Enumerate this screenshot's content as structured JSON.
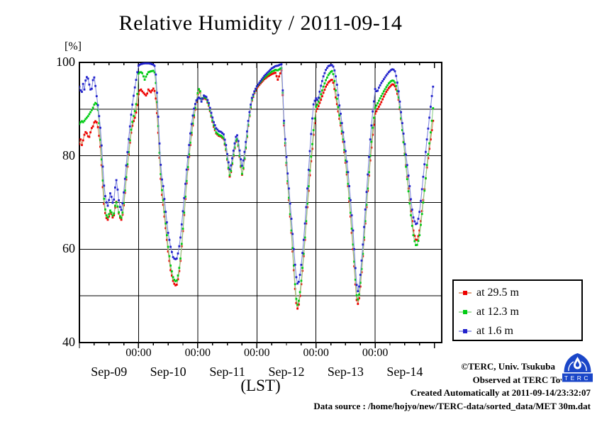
{
  "title": "Relative Humidity / 2011-09-14",
  "y_unit_label": "[%]",
  "x_axis_label": "(LST)",
  "axes": {
    "y": {
      "min": 40,
      "max": 100,
      "tick_labels": [
        {
          "value": 100,
          "label": "100"
        },
        {
          "value": 80,
          "label": "80"
        },
        {
          "value": 60,
          "label": "60"
        },
        {
          "value": 40,
          "label": "40"
        }
      ],
      "gridlines": [
        50,
        60,
        70,
        80,
        90
      ]
    },
    "x": {
      "min_hours": 0,
      "max_hours": 147,
      "major_tick_hours": [
        0,
        24,
        48,
        72,
        96,
        120,
        144
      ],
      "labeled_major_hours": [
        24,
        48,
        72,
        96,
        120
      ],
      "major_tick_label": "00:00",
      "minor_tick_step_hours": 6,
      "day_labels": [
        {
          "label": "Sep-09",
          "noon_hour": 12
        },
        {
          "label": "Sep-10",
          "noon_hour": 36
        },
        {
          "label": "Sep-11",
          "noon_hour": 60
        },
        {
          "label": "Sep-12",
          "noon_hour": 84
        },
        {
          "label": "Sep-13",
          "noon_hour": 108
        },
        {
          "label": "Sep-14",
          "noon_hour": 132
        }
      ]
    }
  },
  "legend": {
    "items": [
      {
        "label": "at 29.5 m",
        "marker_color": "#ee0000",
        "line_color": "#d4855a"
      },
      {
        "label": "at 12.3 m",
        "marker_color": "#00cc14",
        "line_color": "#8ed08a"
      },
      {
        "label": "at 1.6 m",
        "marker_color": "#2222cc",
        "line_color": "#8289dd"
      }
    ]
  },
  "credits": {
    "line1": "©TERC, Univ. Tsukuba",
    "line2": "Observed at TERC Tower site",
    "line3": "Created Automatically at 2011-09-14/23:32:07",
    "line4": "Data source : /home/hojyo/new/TERC-data/sorted_data/MET 30m.dat",
    "logo_text": "TERC"
  },
  "chart_data": {
    "type": "line",
    "title": "Relative Humidity / 2011-09-14",
    "xlabel": "(LST)",
    "ylabel": "[%]",
    "ylim": [
      40,
      100
    ],
    "x_unit": "hours since 2011-09-09 00:00 LST",
    "sample_interval_hours": 0.5,
    "t": [
      0,
      0.5,
      1,
      1.5,
      2,
      2.7,
      3.4,
      4.1,
      4.8,
      5.5,
      6.1,
      6.8,
      7.4,
      8,
      8.7,
      9.4,
      10.1,
      10.8,
      11.5,
      12.2,
      12.7,
      13.2,
      13.8,
      14.5,
      15.1,
      15.7,
      16.3,
      17,
      17.7,
      18.4,
      19.1,
      19.8,
      20.5,
      21.2,
      21.9,
      22.6,
      23.3,
      23.7,
      24,
      24.75,
      25.5,
      26.5,
      27.2,
      28,
      29,
      30,
      30.6,
      31.2,
      31.9,
      32.6,
      33.3,
      34,
      35,
      36,
      37,
      38,
      38.8,
      39.5,
      40.2,
      41,
      41.8,
      42.6,
      43.4,
      44.2,
      45,
      45.8,
      46.6,
      47.4,
      48,
      48.75,
      49.5,
      50.5,
      51.5,
      52.5,
      53.5,
      54.5,
      55.5,
      56.5,
      57.5,
      58.5,
      59.5,
      60.3,
      61.1,
      61.8,
      62.8,
      63.8,
      64.6,
      65.3,
      66.1,
      66.9,
      67.7,
      68.4,
      69.2,
      70,
      71,
      72,
      73.5,
      75,
      76.5,
      78,
      79.5,
      80.5,
      81.3,
      82,
      82.5,
      83,
      83.7,
      84.3,
      85,
      86,
      87,
      87.75,
      88.3,
      88.8,
      89.5,
      90.2,
      91,
      92,
      93,
      93.75,
      94.5,
      95,
      95.5,
      96,
      96.75,
      98,
      99,
      100,
      101,
      102,
      102.7,
      103.3,
      104,
      104.7,
      105.3,
      106,
      107,
      108,
      109,
      110,
      111,
      111.75,
      112.3,
      112.8,
      113.5,
      114.2,
      115,
      116,
      117,
      118,
      119,
      119.7,
      120,
      120.75,
      121.5,
      122.5,
      123.5,
      124.5,
      125.5,
      126.5,
      127.25,
      128,
      128.75,
      129.5,
      130.25,
      131,
      132,
      133,
      134,
      134.75,
      135.5,
      136.2,
      136.75,
      137.3,
      138,
      138.75,
      139.5,
      140.25,
      141,
      141.75,
      142.5,
      143,
      143.5
    ],
    "series": [
      {
        "name": "at 29.5 m",
        "height_m": 29.5,
        "marker_color": "#ee0000",
        "line_color": "#d4855a",
        "values": [
          82.5,
          83.5,
          82.3,
          83.3,
          84.5,
          85.3,
          84.2,
          84,
          85.8,
          86.3,
          87.3,
          87.5,
          86.5,
          84.3,
          81,
          74,
          69,
          66.8,
          66.3,
          67.3,
          68.3,
          67,
          66.6,
          68.9,
          70.4,
          68.4,
          66.9,
          66.3,
          67.8,
          71.5,
          75.5,
          79.3,
          82.8,
          85.8,
          87.3,
          88.3,
          90,
          91.8,
          93.2,
          94.4,
          93.8,
          93.2,
          92.8,
          94.2,
          93.6,
          94.4,
          93.8,
          91.5,
          86,
          78.5,
          72.5,
          69.5,
          64.5,
          59.5,
          55.5,
          53.2,
          52.2,
          52.4,
          54,
          57.5,
          62.5,
          68,
          73.5,
          78.3,
          82.3,
          85.8,
          88.6,
          91.2,
          93.2,
          94.4,
          91.9,
          92.4,
          92.1,
          90.7,
          88.4,
          86.2,
          84.8,
          84.3,
          84.1,
          83.6,
          81.2,
          77.9,
          75.2,
          77.5,
          81,
          83.9,
          81.8,
          78.3,
          75.6,
          78.8,
          82.5,
          86,
          89.3,
          91.8,
          93.4,
          94.5,
          95.5,
          96.4,
          97,
          97.5,
          97.8,
          96.3,
          97.4,
          98.3,
          93,
          86.5,
          80.5,
          75.5,
          70.5,
          63.5,
          55.5,
          49.5,
          47.2,
          47.4,
          50,
          53.5,
          58.5,
          65.5,
          72.5,
          77.5,
          81.5,
          84.5,
          87,
          89.5,
          90.3,
          92,
          93.5,
          94.8,
          95.7,
          96.2,
          96.3,
          95,
          92.5,
          90.5,
          88.5,
          86.5,
          83,
          78.5,
          73.5,
          67,
          60,
          54.5,
          50,
          47.8,
          49.5,
          53,
          58.5,
          65.5,
          72.5,
          79,
          84.5,
          87.5,
          89,
          89.8,
          90.5,
          91.5,
          92.7,
          93.7,
          94.5,
          95.1,
          95.4,
          94.9,
          93.9,
          92,
          89,
          85.5,
          80.5,
          75.5,
          70.5,
          67,
          64,
          62.4,
          61.7,
          62.3,
          64,
          67,
          70.5,
          74,
          77.5,
          80.5,
          83.5,
          85.5,
          87.5
        ]
      },
      {
        "name": "at 12.3 m",
        "height_m": 12.3,
        "marker_color": "#00cc14",
        "line_color": "#8ed08a",
        "values": [
          86.8,
          87.2,
          87.4,
          87.2,
          87.5,
          88,
          88.4,
          89,
          89.6,
          90.3,
          91.1,
          91.5,
          90.4,
          87,
          82,
          75.5,
          70,
          67.4,
          66.8,
          67.8,
          68.6,
          67.4,
          67,
          69.3,
          70.2,
          68.6,
          67.2,
          66.7,
          68.3,
          72,
          76,
          79.8,
          83.3,
          86.5,
          88.3,
          89.8,
          92,
          94.5,
          97.6,
          98,
          97.7,
          96.3,
          97.2,
          97.9,
          98.1,
          98.2,
          97.8,
          94.5,
          87.5,
          79.5,
          73.5,
          70.5,
          65.5,
          60.5,
          56.5,
          54,
          53.1,
          53.3,
          54.8,
          58,
          63,
          68.5,
          74,
          78.8,
          82.8,
          86.2,
          89,
          91.5,
          93.4,
          94.7,
          92.1,
          92.6,
          92.3,
          90.9,
          88.6,
          86.5,
          85,
          84.5,
          84.3,
          83.8,
          81.4,
          78.1,
          75.5,
          77.7,
          81.2,
          84.1,
          82,
          78.5,
          75.8,
          79,
          82.7,
          86.2,
          89.5,
          92,
          93.6,
          94.8,
          95.8,
          96.7,
          97.4,
          98,
          98.4,
          98.3,
          98.6,
          98.8,
          93.5,
          87,
          81,
          76,
          71,
          64,
          56.5,
          50.5,
          48,
          48.2,
          50.8,
          54.2,
          59,
          66,
          73.5,
          78.5,
          82.5,
          85.5,
          88,
          90.5,
          91.2,
          93.2,
          94.8,
          96.2,
          97.3,
          98,
          98.2,
          96.8,
          94,
          91.5,
          89.3,
          87,
          83.5,
          79,
          74,
          67.8,
          61,
          55.5,
          51,
          48.8,
          50.3,
          53.8,
          59,
          66,
          73,
          80,
          86,
          89,
          90.3,
          91,
          91.8,
          92.8,
          93.8,
          94.7,
          95.5,
          96,
          96.2,
          95.7,
          94.6,
          92.5,
          89.3,
          85.5,
          80.3,
          75,
          69.8,
          66,
          63,
          61.2,
          60.6,
          61.3,
          63,
          66.3,
          70,
          73.8,
          78,
          81.5,
          85,
          87.5,
          90.2
        ]
      },
      {
        "name": "at 1.6 m",
        "height_m": 1.6,
        "marker_color": "#2222cc",
        "line_color": "#8289dd",
        "values": [
          94.8,
          94,
          93.7,
          95.4,
          94.2,
          96.9,
          96.8,
          95,
          93.6,
          96.2,
          96.9,
          93.5,
          91.3,
          88.5,
          85,
          78.5,
          72.8,
          70.3,
          69.3,
          71,
          72.6,
          70.3,
          69.6,
          73.2,
          75.1,
          71.6,
          69.3,
          68.4,
          70.4,
          74.5,
          78.5,
          82.5,
          86.3,
          89.8,
          92.5,
          95,
          97.2,
          98.6,
          99.3,
          99.6,
          99.7,
          99.8,
          99.8,
          99.8,
          99.7,
          99.5,
          99.2,
          96.5,
          89.5,
          81.5,
          75.5,
          73.5,
          68,
          63.5,
          60.5,
          58.3,
          57.8,
          58,
          59.5,
          62.5,
          67,
          71.5,
          76.5,
          80.8,
          84.8,
          88,
          90.4,
          91.8,
          92.2,
          92.6,
          91.6,
          92.9,
          92.6,
          91.3,
          89.2,
          87.2,
          85.9,
          85.3,
          85.1,
          84.6,
          82.3,
          79.2,
          76.8,
          78.8,
          82.1,
          84.9,
          82.9,
          79.8,
          77.6,
          80.4,
          83.8,
          87.1,
          90.1,
          92.4,
          93.8,
          94.9,
          96,
          97.1,
          97.9,
          98.7,
          99.2,
          99.3,
          99.5,
          99.6,
          94,
          87.5,
          82,
          77.5,
          73,
          66.5,
          60,
          55,
          52.8,
          52.4,
          54.5,
          57.5,
          62,
          69,
          77,
          83,
          88,
          91,
          91.8,
          92.3,
          91.8,
          95,
          97,
          98.4,
          99.2,
          99.4,
          99.4,
          98.8,
          97,
          94.5,
          91.5,
          89,
          85,
          81,
          76.5,
          70.5,
          64,
          58,
          53.5,
          50.6,
          52,
          55.5,
          61,
          68.5,
          76,
          83.5,
          89.5,
          92.5,
          94.3,
          93.6,
          94.6,
          95.6,
          96.4,
          97.2,
          97.9,
          98.4,
          98.6,
          98.1,
          96.6,
          93.8,
          90.5,
          87,
          82.5,
          78,
          73.5,
          69.3,
          66.8,
          65.6,
          65.2,
          65.9,
          68,
          71.5,
          75.5,
          79.5,
          83.5,
          87,
          90.5,
          92.8,
          94.8
        ]
      }
    ]
  }
}
